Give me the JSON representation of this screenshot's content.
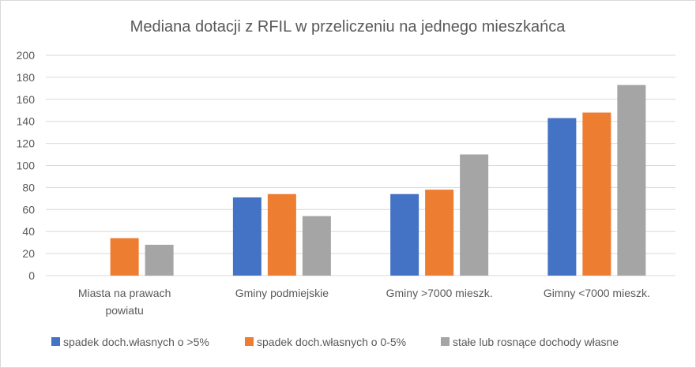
{
  "chart_data": {
    "type": "bar",
    "title": "Mediana dotacji z RFIL w przeliczeniu na jednego mieszkańca",
    "xlabel": "",
    "ylabel": "",
    "ylim": [
      0,
      200
    ],
    "yticks": [
      0,
      20,
      40,
      60,
      80,
      100,
      120,
      140,
      160,
      180,
      200
    ],
    "grid": true,
    "legend_position": "bottom",
    "categories": [
      [
        "Miasta na prawach",
        "powiatu"
      ],
      [
        "Gminy podmiejskie"
      ],
      [
        "Gminy >7000 mieszk."
      ],
      [
        "Gimny <7000 mieszk."
      ]
    ],
    "series": [
      {
        "name": "spadek doch.własnych o >5%",
        "color": "#4472c4",
        "values": [
          0,
          71,
          74,
          143
        ]
      },
      {
        "name": "spadek doch.własnych o 0-5%",
        "color": "#ed7d31",
        "values": [
          34,
          74,
          78,
          148
        ]
      },
      {
        "name": "stałe lub rosnące dochody własne",
        "color": "#a5a5a5",
        "values": [
          28,
          54,
          110,
          173
        ]
      }
    ]
  }
}
